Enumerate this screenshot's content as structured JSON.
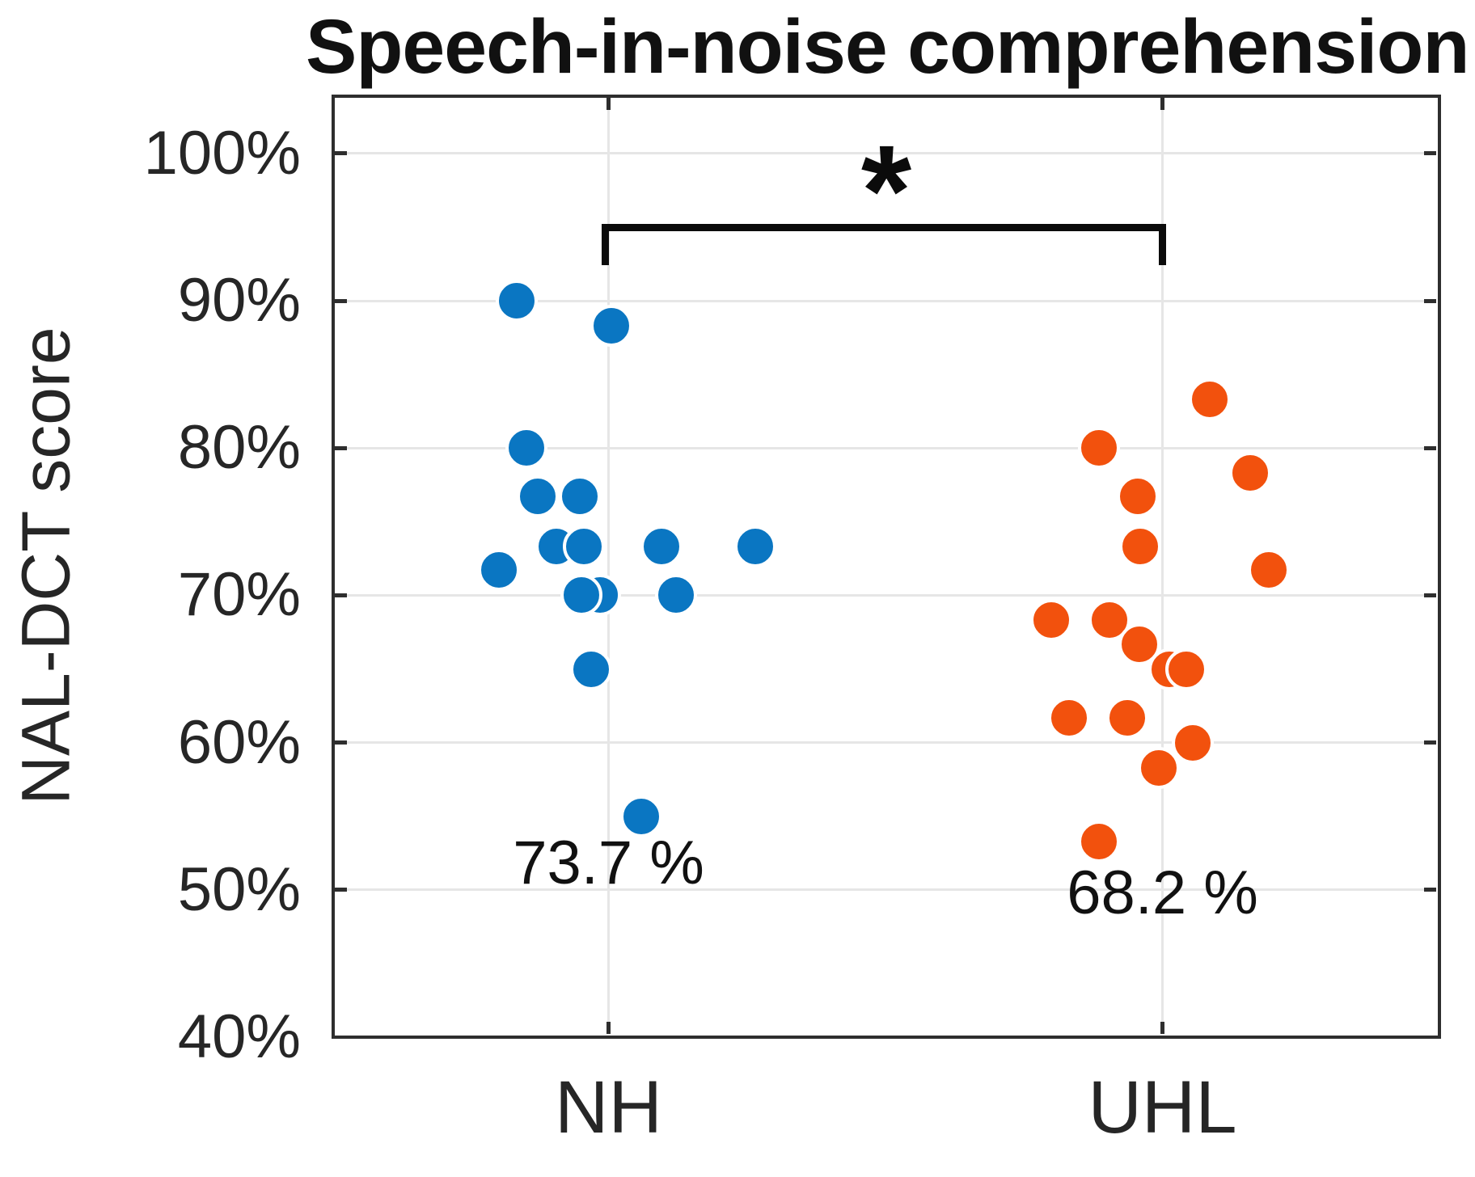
{
  "chart_data": {
    "type": "scatter",
    "title": "Speech-in-noise comprehension",
    "ylabel": "NAL-DCT score",
    "ylim": [
      40,
      104
    ],
    "yticks": [
      100,
      90,
      80,
      70,
      60,
      50,
      40
    ],
    "ytick_suffix": "%",
    "grid": true,
    "legend_position": "none",
    "significance": {
      "marker": "*",
      "between": [
        "NH",
        "UHL"
      ]
    },
    "groups": [
      {
        "label": "NH",
        "color": "#0a76c2",
        "mean": 73.7,
        "mean_label": "73.7 %",
        "points": [
          {
            "dx": -114,
            "v": 90.0
          },
          {
            "dx": 3,
            "v": 88.3
          },
          {
            "dx": -102,
            "v": 80.0
          },
          {
            "dx": -88,
            "v": 76.7
          },
          {
            "dx": -36,
            "v": 76.7
          },
          {
            "dx": -65,
            "v": 73.3
          },
          {
            "dx": -31,
            "v": 73.3
          },
          {
            "dx": 65,
            "v": 73.3
          },
          {
            "dx": 181,
            "v": 73.3
          },
          {
            "dx": -136,
            "v": 71.7
          },
          {
            "dx": -11,
            "v": 70.0
          },
          {
            "dx": 83,
            "v": 70.0
          },
          {
            "dx": -34,
            "v": 70.0
          },
          {
            "dx": -22,
            "v": 65.0
          },
          {
            "dx": 40,
            "v": 55.0
          }
        ]
      },
      {
        "label": "UHL",
        "color": "#f2510d",
        "mean": 68.2,
        "mean_label": "68.2 %",
        "points": [
          {
            "dx": 58,
            "v": 83.3
          },
          {
            "dx": -79,
            "v": 80.0
          },
          {
            "dx": 108,
            "v": 78.3
          },
          {
            "dx": -31,
            "v": 76.7
          },
          {
            "dx": -28,
            "v": 73.3
          },
          {
            "dx": 131,
            "v": 71.7
          },
          {
            "dx": -138,
            "v": 68.3
          },
          {
            "dx": -66,
            "v": 68.3
          },
          {
            "dx": -29,
            "v": 66.7
          },
          {
            "dx": 8,
            "v": 65.0
          },
          {
            "dx": 29,
            "v": 65.0
          },
          {
            "dx": -116,
            "v": 61.7
          },
          {
            "dx": -44,
            "v": 61.7
          },
          {
            "dx": 37,
            "v": 60.0
          },
          {
            "dx": -5,
            "v": 58.3
          },
          {
            "dx": -79,
            "v": 53.3
          }
        ]
      }
    ]
  }
}
